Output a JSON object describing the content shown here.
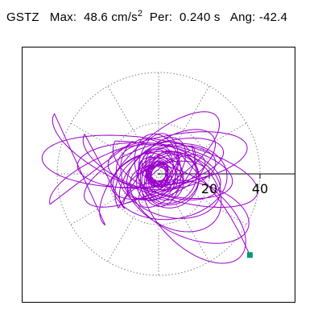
{
  "header": {
    "station": "GSTZ",
    "max_label": "Max:",
    "max_value": "48.6",
    "max_unit": "cm/s",
    "max_unit_exp": "2",
    "per_label": "Per:",
    "per_value": "0.240 s",
    "ang_label": "Ang:",
    "ang_value": "-42.4"
  },
  "colors": {
    "trace": "#9900cc",
    "end_marker": "#009977",
    "grid": "#808080",
    "axis": "#000000",
    "frame": "#000000"
  },
  "chart_data": {
    "type": "scatter",
    "title": "GSTZ   Max:  48.6 cm/s2  Per:  0.240 s   Ang: -42.4",
    "plot": "polar particle-motion trace (line)",
    "radial_ticks": [
      20,
      40
    ],
    "radial_rings": [
      20,
      40
    ],
    "spokes_deg": [
      0,
      30,
      60,
      90,
      120,
      150,
      180,
      210,
      240,
      270,
      300,
      330
    ],
    "grid": true,
    "xlim": [
      -52,
      52
    ],
    "ylim": [
      -49,
      49
    ],
    "trajectory": {
      "loops": [
        {
          "a": 5,
          "b": 3,
          "angle_deg": 40,
          "cx": 0,
          "cy": 0,
          "turns": 10
        },
        {
          "a": 9,
          "b": 5,
          "angle_deg": 35,
          "cx": 1,
          "cy": 1,
          "turns": 6
        },
        {
          "a": 14,
          "b": 8,
          "angle_deg": 30,
          "cx": 0,
          "cy": 2,
          "turns": 4
        },
        {
          "a": 22,
          "b": 9,
          "angle_deg": 150,
          "cx": 2,
          "cy": 2,
          "turns": 3
        },
        {
          "a": 30,
          "b": 9,
          "angle_deg": 155,
          "cx": -2,
          "cy": 3,
          "turns": 3
        },
        {
          "a": 42,
          "b": 10,
          "angle_deg": 152,
          "cx": -4,
          "cy": 4,
          "turns": 2
        },
        {
          "a": 22,
          "b": 14,
          "angle_deg": 130,
          "cx": 4,
          "cy": -4,
          "turns": 3
        },
        {
          "a": 26,
          "b": 12,
          "angle_deg": 125,
          "cx": 12,
          "cy": -14,
          "turns": 2
        },
        {
          "a": 16,
          "b": 6,
          "angle_deg": 5,
          "cx": 4,
          "cy": -2,
          "turns": 2
        },
        {
          "a": 11,
          "b": 10,
          "angle_deg": 0,
          "cx": 5,
          "cy": -2,
          "turns": 3
        }
      ],
      "end_point": [
        36,
        -32
      ]
    }
  }
}
